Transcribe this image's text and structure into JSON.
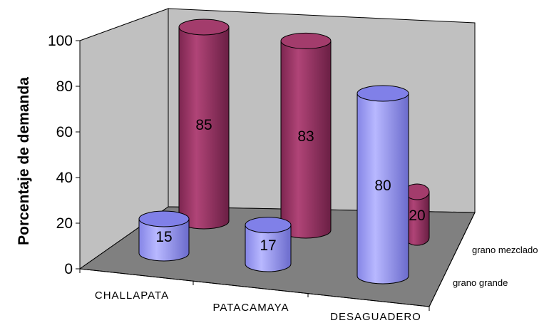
{
  "chart_data": {
    "type": "bar",
    "style": "3d-cylinder",
    "title": "",
    "xlabel": "",
    "ylabel": "Porcentaje de demanda",
    "ylim": [
      0,
      100
    ],
    "yticks": [
      "0",
      "20",
      "40",
      "60",
      "80",
      "100"
    ],
    "categories": [
      "CHALLAPATA",
      "PATACAMAYA",
      "DESAGUADERO"
    ],
    "series": [
      {
        "name": "grano grande",
        "values": [
          15,
          17,
          80
        ],
        "color": "#9999ff"
      },
      {
        "name": "grano mezclado",
        "values": [
          85,
          83,
          20
        ],
        "color": "#993366"
      }
    ],
    "grid": false,
    "wall_color": "#c0c0c0",
    "floor_color": "#808080",
    "legend": "none (series names shown on depth axis)"
  }
}
